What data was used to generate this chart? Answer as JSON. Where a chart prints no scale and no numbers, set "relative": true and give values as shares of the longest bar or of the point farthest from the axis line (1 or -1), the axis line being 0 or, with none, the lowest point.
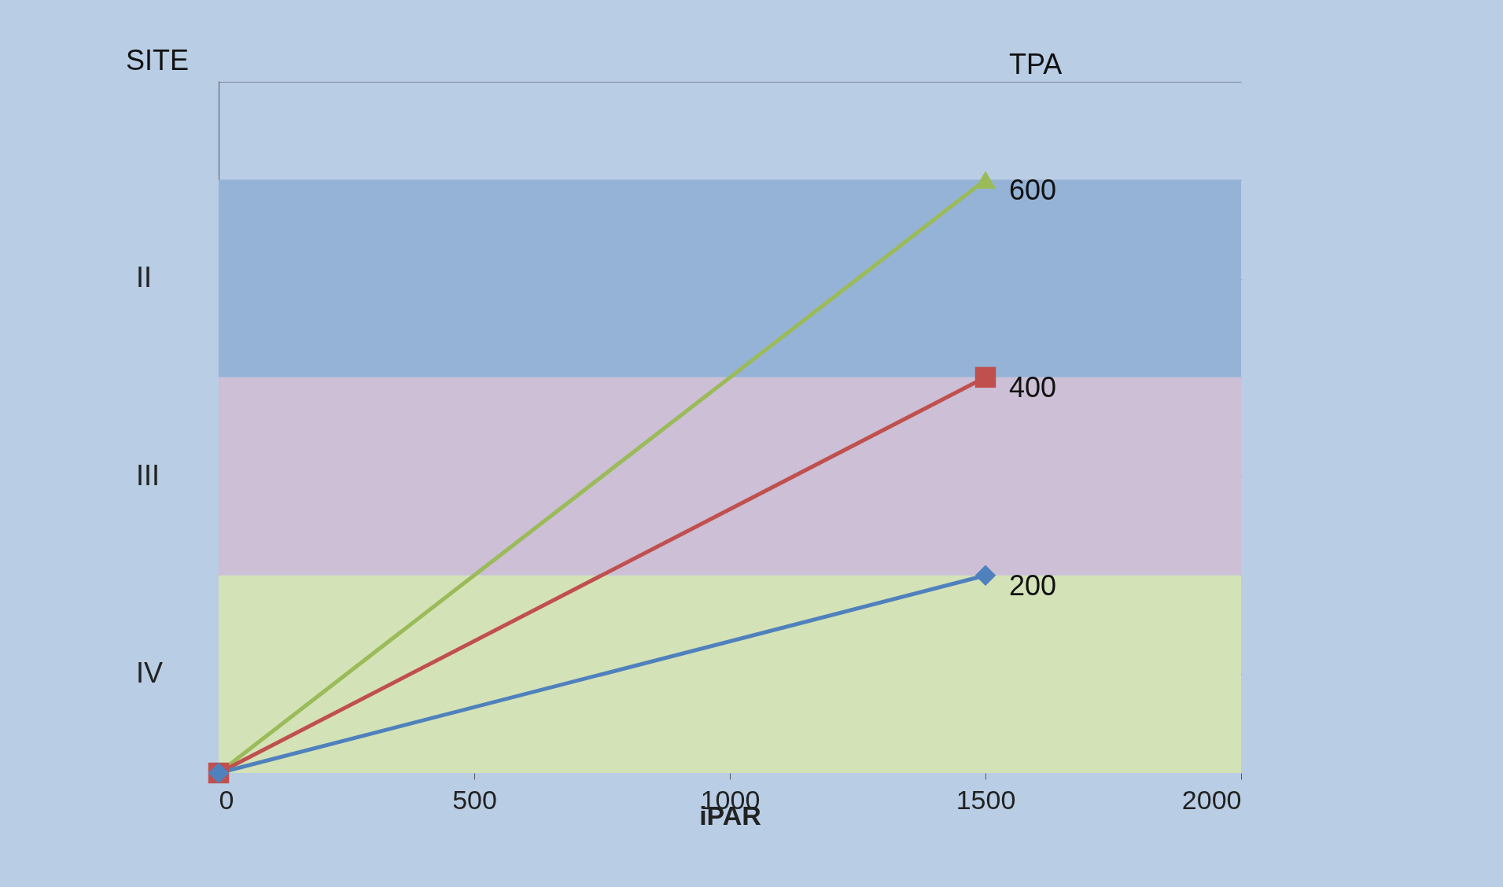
{
  "chart_data": {
    "type": "line",
    "relative": true,
    "xlabel": "iPAR",
    "legend_title": "TPA",
    "annotations": [
      "SITE"
    ],
    "x": [
      0,
      1500
    ],
    "xlim": [
      0,
      2000
    ],
    "xticks": [
      0,
      500,
      1000,
      1500,
      2000
    ],
    "grid": "y",
    "line_style": "solid",
    "series": [
      {
        "name": "600",
        "color": "#9bbb59",
        "marker": "triangle",
        "values": [
          0,
          1
        ]
      },
      {
        "name": "400",
        "color": "#c0504d",
        "marker": "square",
        "values": [
          0,
          0.667
        ]
      },
      {
        "name": "200",
        "color": "#4f81bd",
        "marker": "diamond",
        "values": [
          0,
          0.333
        ]
      }
    ],
    "bands": [
      {
        "axis": "y",
        "from": 0.667,
        "to": 1,
        "label": "II",
        "color": "#95b3d7"
      },
      {
        "axis": "y",
        "from": 0.333,
        "to": 0.667,
        "label": "III",
        "color": "#ccbfd6"
      },
      {
        "axis": "y",
        "from": 0,
        "to": 0.333,
        "label": "IV",
        "color": "#d4e2b8"
      }
    ]
  }
}
